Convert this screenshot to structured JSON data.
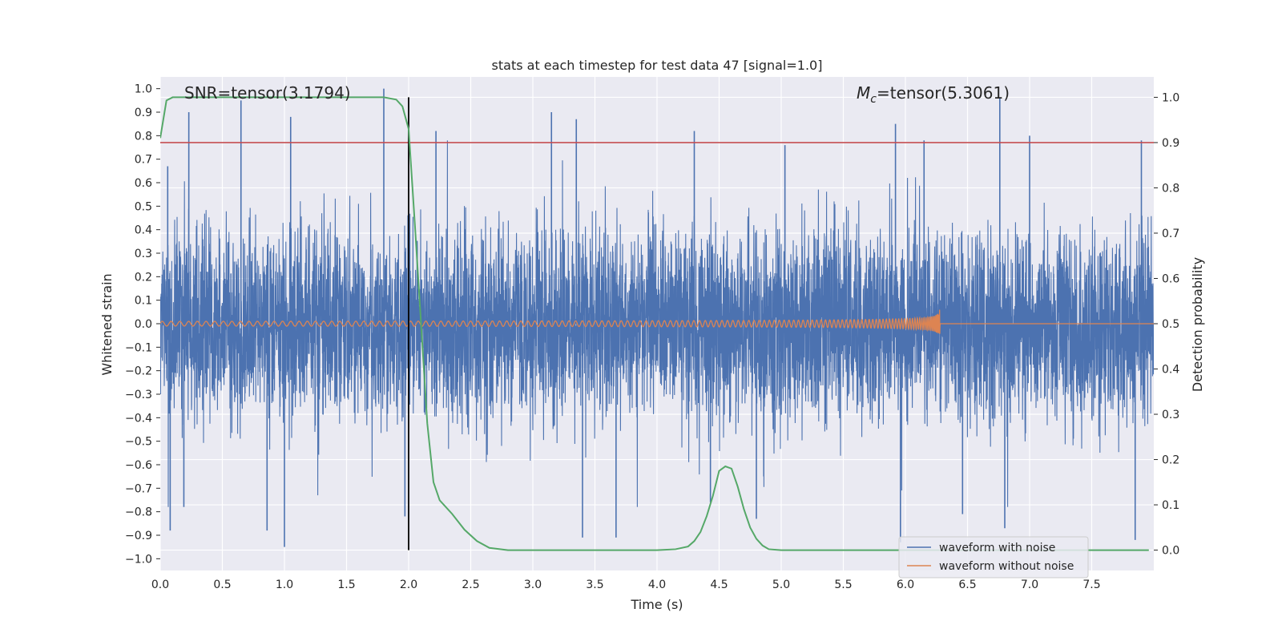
{
  "chart_data": {
    "type": "line",
    "title": "stats at each timestep for test data 47 [signal=1.0]",
    "xlabel": "Time (s)",
    "ylabel": "Whitened strain",
    "y2label": "Detection probability",
    "xlim": [
      0.0,
      8.0
    ],
    "ylim": [
      -1.05,
      1.05
    ],
    "y2lim": [
      -0.045,
      1.045
    ],
    "x_ticks": [
      "0.0",
      "0.5",
      "1.0",
      "1.5",
      "2.0",
      "2.5",
      "3.0",
      "3.5",
      "4.0",
      "4.5",
      "5.0",
      "5.5",
      "6.0",
      "6.5",
      "7.0",
      "7.5"
    ],
    "y_ticks": [
      "1.0",
      "0.9",
      "0.8",
      "0.7",
      "0.6",
      "0.5",
      "0.4",
      "0.3",
      "0.2",
      "0.1",
      "0.0",
      "−0.1",
      "−0.2",
      "−0.3",
      "−0.4",
      "−0.5",
      "−0.6",
      "−0.7",
      "−0.8",
      "−0.9",
      "−1.0"
    ],
    "y2_ticks": [
      "1.0",
      "0.9",
      "0.8",
      "0.7",
      "0.6",
      "0.5",
      "0.4",
      "0.3",
      "0.2",
      "0.1",
      "0.0"
    ],
    "annotations": {
      "snr": "SNR=tensor(3.1794)",
      "mc_symbol": "M",
      "mc_sub": "c",
      "mc_value": "=tensor(5.3061)"
    },
    "threshold_line": {
      "axis": "y2",
      "value": 0.9,
      "color": "#c44e52"
    },
    "vertical_line": {
      "x": 2.0,
      "color": "#000000"
    },
    "series": [
      {
        "name": "waveform with noise",
        "color": "#4c72b0",
        "axis": "y1",
        "peaks": [
          {
            "x": 0.06,
            "y": 0.67
          },
          {
            "x": 0.08,
            "y": -0.88
          },
          {
            "x": 0.23,
            "y": 0.9
          },
          {
            "x": 0.19,
            "y": -0.78
          },
          {
            "x": 0.65,
            "y": 0.95
          },
          {
            "x": 0.86,
            "y": -0.88
          },
          {
            "x": 1.0,
            "y": -0.95
          },
          {
            "x": 1.05,
            "y": 0.88
          },
          {
            "x": 1.8,
            "y": 1.0
          },
          {
            "x": 1.97,
            "y": -0.82
          },
          {
            "x": 2.22,
            "y": 0.82
          },
          {
            "x": 3.15,
            "y": 0.9
          },
          {
            "x": 3.35,
            "y": 0.87
          },
          {
            "x": 3.4,
            "y": -0.91
          },
          {
            "x": 3.67,
            "y": -0.91
          },
          {
            "x": 4.3,
            "y": 0.82
          },
          {
            "x": 4.43,
            "y": -0.76
          },
          {
            "x": 4.8,
            "y": -0.83
          },
          {
            "x": 5.03,
            "y": 0.76
          },
          {
            "x": 5.92,
            "y": 0.85
          },
          {
            "x": 5.96,
            "y": -0.93
          },
          {
            "x": 6.15,
            "y": 0.78
          },
          {
            "x": 6.46,
            "y": -0.81
          },
          {
            "x": 6.76,
            "y": 0.96
          },
          {
            "x": 6.8,
            "y": -0.87
          },
          {
            "x": 7.0,
            "y": 0.8
          },
          {
            "x": 7.85,
            "y": -0.92
          },
          {
            "x": 7.9,
            "y": 0.78
          }
        ]
      },
      {
        "name": "waveform without noise",
        "color": "#dd8452",
        "axis": "y1",
        "chirp_start": 0.0,
        "chirp_merger": 6.28,
        "amplitude_start": 0.01,
        "amplitude_peak": 0.08
      },
      {
        "name": "detection probability",
        "color": "#55a868",
        "axis": "y2",
        "x": [
          0.0,
          0.05,
          0.1,
          0.2,
          0.5,
          1.0,
          1.5,
          1.8,
          1.9,
          1.95,
          2.0,
          2.05,
          2.1,
          2.15,
          2.2,
          2.25,
          2.35,
          2.45,
          2.55,
          2.65,
          2.8,
          3.0,
          3.5,
          4.0,
          4.15,
          4.25,
          4.3,
          4.35,
          4.4,
          4.45,
          4.5,
          4.55,
          4.6,
          4.65,
          4.7,
          4.75,
          4.8,
          4.85,
          4.9,
          5.0,
          5.2,
          6.0,
          7.0,
          7.96
        ],
        "y": [
          0.91,
          0.993,
          1.0,
          1.0,
          1.0,
          1.0,
          1.0,
          1.0,
          0.995,
          0.98,
          0.93,
          0.72,
          0.5,
          0.28,
          0.15,
          0.11,
          0.08,
          0.045,
          0.02,
          0.005,
          0.0,
          0.0,
          0.0,
          0.0,
          0.002,
          0.008,
          0.02,
          0.04,
          0.075,
          0.12,
          0.175,
          0.185,
          0.18,
          0.14,
          0.09,
          0.05,
          0.025,
          0.01,
          0.002,
          0.0,
          0.0,
          0.0,
          0.0,
          0.0
        ]
      }
    ],
    "legend": {
      "position": "lower-right",
      "entries": [
        "waveform with noise",
        "waveform without noise"
      ]
    }
  }
}
